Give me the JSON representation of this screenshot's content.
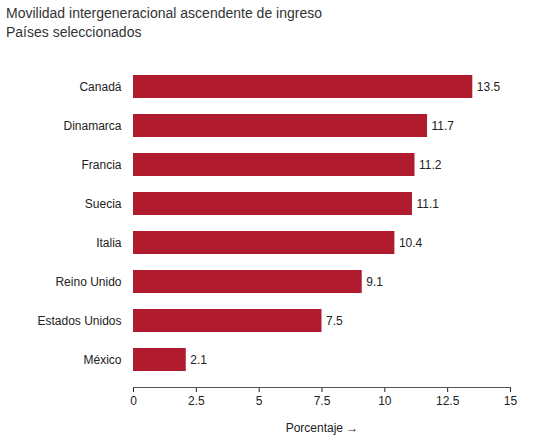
{
  "chart_data": {
    "type": "bar",
    "title": "Movilidad intergeneracional ascendente de ingreso",
    "subtitle": "Países seleccionados",
    "categories": [
      "Canadá",
      "Dinamarca",
      "Francia",
      "Suecia",
      "Italia",
      "Reino Unido",
      "Estados Unidos",
      "México"
    ],
    "values": [
      13.5,
      11.7,
      11.2,
      11.1,
      10.4,
      9.1,
      7.5,
      2.1
    ],
    "color": "#b01c2e",
    "orientation": "horizontal",
    "data_labels": true,
    "xlabel": "Porcentaje",
    "xlim": [
      0,
      15
    ],
    "xticks": [
      0,
      2.5,
      5,
      7.5,
      10,
      12.5,
      15
    ],
    "grid": false
  }
}
